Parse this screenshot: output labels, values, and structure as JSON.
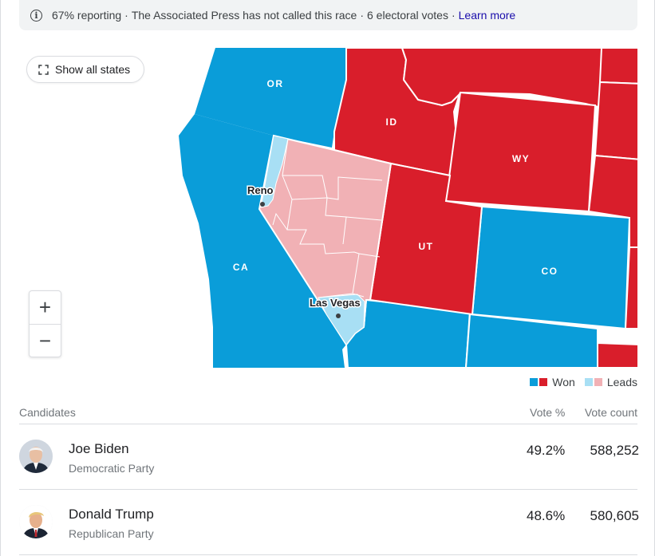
{
  "status": {
    "reporting": "67% reporting",
    "call_status": "The Associated Press has not called this race",
    "electoral_votes": "6 electoral votes",
    "separator": "·",
    "learn_more": "Learn more"
  },
  "map": {
    "show_all_label": "Show all states",
    "zoom_in": "+",
    "zoom_out": "−",
    "states": {
      "or": "OR",
      "id": "ID",
      "wy": "WY",
      "ca": "CA",
      "ut": "UT",
      "co": "CO"
    },
    "cities": {
      "reno": "Reno",
      "las_vegas": "Las Vegas"
    }
  },
  "legend": {
    "won": "Won",
    "leads": "Leads"
  },
  "colors": {
    "dem_won": "#0a9dd9",
    "rep_won": "#d91e2b",
    "dem_leads": "#a8dff4",
    "rep_leads": "#f1b1b5"
  },
  "table": {
    "headers": {
      "candidates": "Candidates",
      "vote_pct": "Vote %",
      "vote_count": "Vote count"
    },
    "candidates": [
      {
        "name": "Joe Biden",
        "party": "Democratic Party",
        "pct": "49.2%",
        "count": "588,252"
      },
      {
        "name": "Donald Trump",
        "party": "Republican Party",
        "pct": "48.6%",
        "count": "580,605"
      }
    ]
  }
}
